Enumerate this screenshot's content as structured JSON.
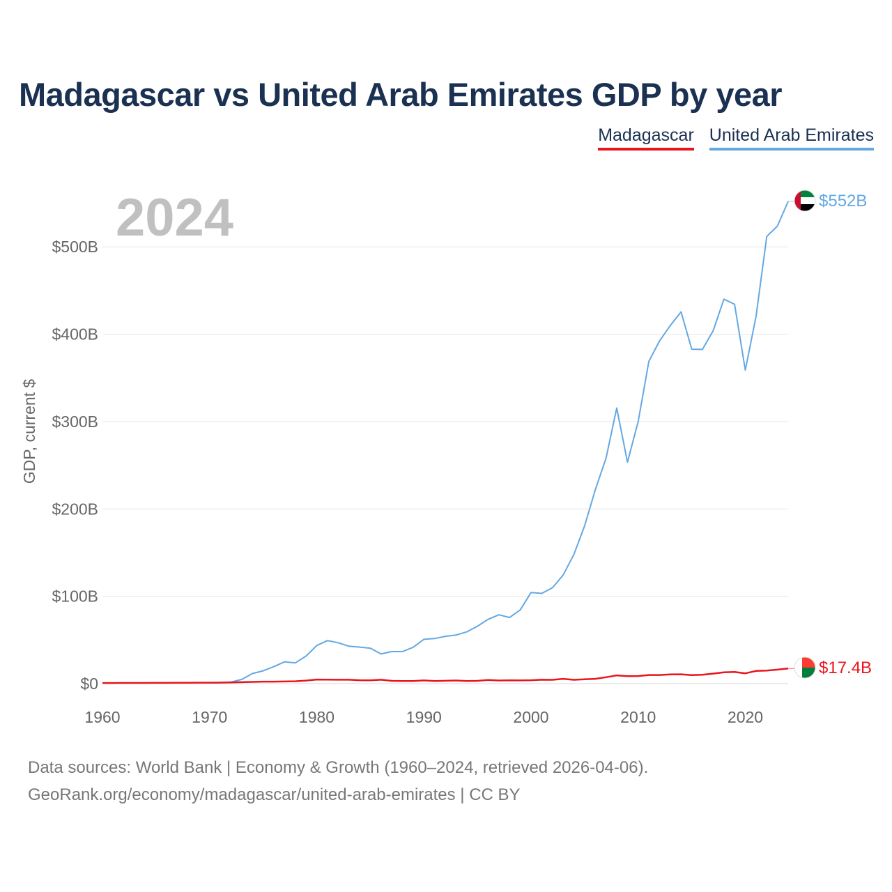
{
  "title": "Madagascar vs United Arab Emirates GDP by year",
  "legend": [
    {
      "label": "Madagascar",
      "color": "#e8151c"
    },
    {
      "label": "United Arab Emirates",
      "color": "#63a8e3"
    }
  ],
  "source": {
    "line1": "Data sources: World Bank | Economy & Growth (1960–2024, retrieved 2026-04-06).",
    "line2": "GeoRank.org/economy/madagascar/united-arab-emirates | CC BY"
  },
  "chart_data": {
    "type": "line",
    "title": "Madagascar vs United Arab Emirates GDP by year",
    "xlabel": "",
    "ylabel": "GDP, current $",
    "current_year_label": "2024",
    "xlim": [
      1960,
      2024
    ],
    "ylim": [
      0,
      552
    ],
    "grid": true,
    "x_ticks": [
      1960,
      1970,
      1980,
      1990,
      2000,
      2010,
      2020
    ],
    "x_tick_labels": [
      "1960",
      "1970",
      "1980",
      "1990",
      "2000",
      "2010",
      "2020"
    ],
    "y_ticks": [
      0,
      100,
      200,
      300,
      400,
      500
    ],
    "y_tick_labels": [
      "$0",
      "$100B",
      "$200B",
      "$300B",
      "$400B",
      "$500B"
    ],
    "series": [
      {
        "name": "United Arab Emirates",
        "color": "#63a8e3",
        "end_label": "$552B",
        "flag": "uae-flag-icon",
        "x": [
          1970,
          1971,
          1972,
          1973,
          1974,
          1975,
          1976,
          1977,
          1978,
          1979,
          1980,
          1981,
          1982,
          1983,
          1984,
          1985,
          1986,
          1987,
          1988,
          1989,
          1990,
          1991,
          1992,
          1993,
          1994,
          1995,
          1996,
          1997,
          1998,
          1999,
          2000,
          2001,
          2002,
          2003,
          2004,
          2005,
          2006,
          2007,
          2008,
          2009,
          2010,
          2011,
          2012,
          2013,
          2014,
          2015,
          2016,
          2017,
          2018,
          2019,
          2020,
          2021,
          2022,
          2023,
          2024
        ],
        "values": [
          0.8,
          1.0,
          1.8,
          4.8,
          11.6,
          14.7,
          19.5,
          25.0,
          23.8,
          31.5,
          43.6,
          49.3,
          46.8,
          42.8,
          41.8,
          40.6,
          34.0,
          36.7,
          36.7,
          41.6,
          50.7,
          51.6,
          54.2,
          55.6,
          59.3,
          65.7,
          73.6,
          78.8,
          75.7,
          84.4,
          104.3,
          103.3,
          109.8,
          124.3,
          147.8,
          180.6,
          222.1,
          257.9,
          315.5,
          253.5,
          300.2,
          368.9,
          392.4,
          409.9,
          425.6,
          382.8,
          382.6,
          404.0,
          440.1,
          434.3,
          358.9,
          420.3,
          511.9,
          523.8,
          552.0
        ]
      },
      {
        "name": "Madagascar",
        "color": "#e8151c",
        "end_label": "$17.4B",
        "flag": "madagascar-flag-icon",
        "x": [
          1960,
          1961,
          1962,
          1963,
          1964,
          1965,
          1966,
          1967,
          1968,
          1969,
          1970,
          1971,
          1972,
          1973,
          1974,
          1975,
          1976,
          1977,
          1978,
          1979,
          1980,
          1981,
          1982,
          1983,
          1984,
          1985,
          1986,
          1987,
          1988,
          1989,
          1990,
          1991,
          1992,
          1993,
          1994,
          1995,
          1996,
          1997,
          1998,
          1999,
          2000,
          2001,
          2002,
          2003,
          2004,
          2005,
          2006,
          2007,
          2008,
          2009,
          2010,
          2011,
          2012,
          2013,
          2014,
          2015,
          2016,
          2017,
          2018,
          2019,
          2020,
          2021,
          2022,
          2023,
          2024
        ],
        "values": [
          0.7,
          0.7,
          0.8,
          0.8,
          0.8,
          0.9,
          0.9,
          1.0,
          1.0,
          1.1,
          1.1,
          1.2,
          1.4,
          1.7,
          2.0,
          2.3,
          2.3,
          2.5,
          2.7,
          3.5,
          4.7,
          4.6,
          4.5,
          4.5,
          3.9,
          3.8,
          4.5,
          3.2,
          3.0,
          3.0,
          3.7,
          3.0,
          3.3,
          3.6,
          3.0,
          3.2,
          4.2,
          3.6,
          3.8,
          3.7,
          3.9,
          4.5,
          4.4,
          5.5,
          4.4,
          5.0,
          5.5,
          7.3,
          9.4,
          8.6,
          8.7,
          9.9,
          9.9,
          10.6,
          10.7,
          9.7,
          10.1,
          11.5,
          13.0,
          13.4,
          11.8,
          14.5,
          15.0,
          16.0,
          17.4
        ]
      }
    ]
  }
}
